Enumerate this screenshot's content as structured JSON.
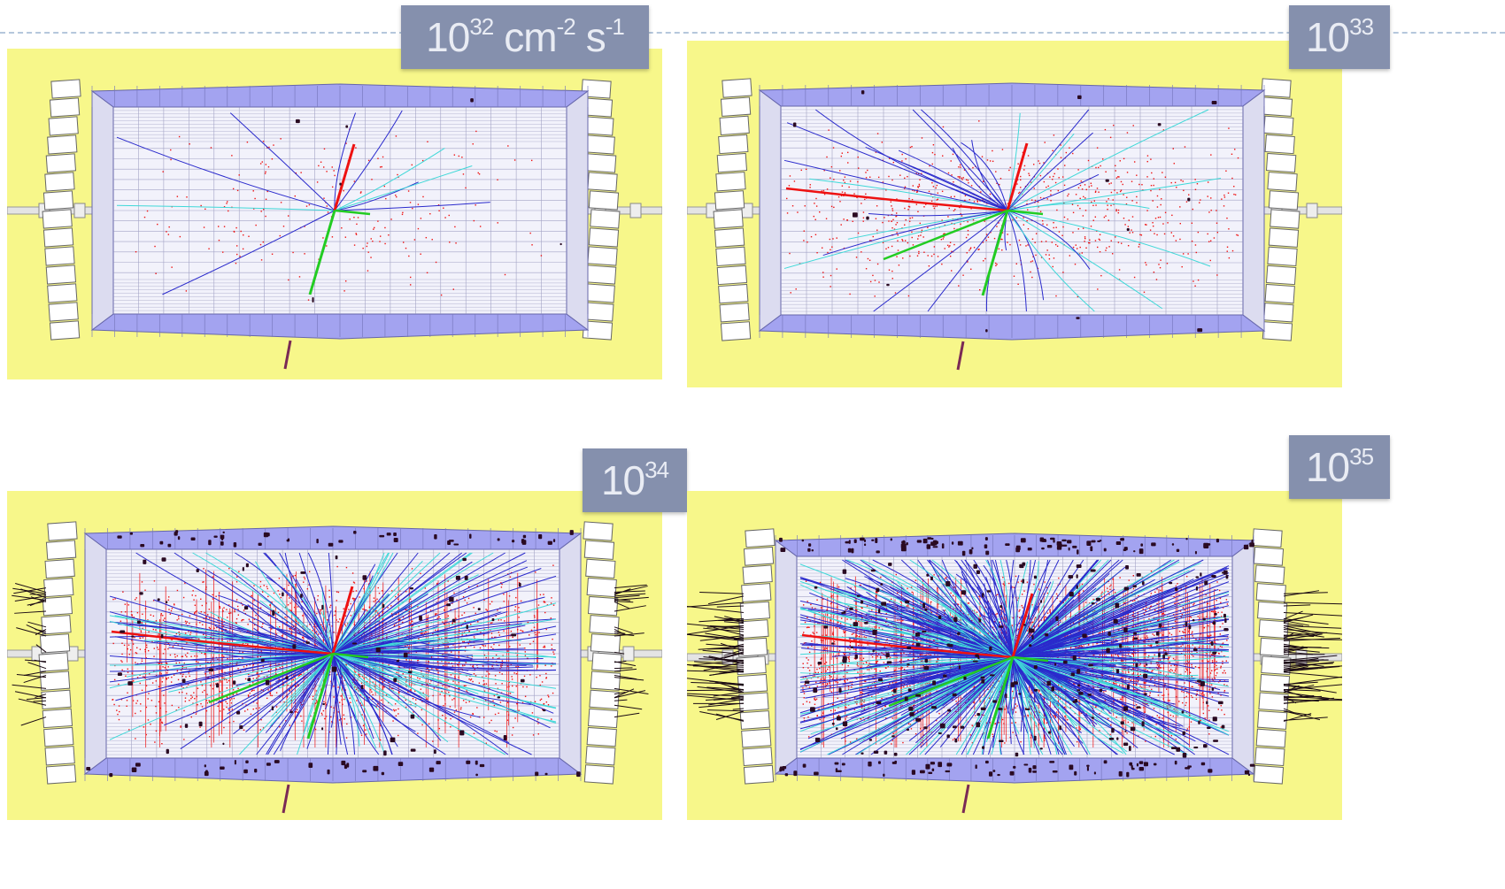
{
  "panels": [
    {
      "label": {
        "base": "10",
        "exp": "32",
        "unit1": "cm",
        "unit1_exp": "-2",
        "unit2": "s",
        "unit2_exp": "-1"
      },
      "tracks": 10,
      "hits": 220,
      "clusters": 6
    },
    {
      "label": {
        "base": "10",
        "exp": "33"
      },
      "tracks": 34,
      "hits": 900,
      "clusters": 14
    },
    {
      "label": {
        "base": "10",
        "exp": "34"
      },
      "tracks": 240,
      "hits": 2600,
      "clusters": 150
    },
    {
      "label": {
        "base": "10",
        "exp": "35"
      },
      "tracks": 520,
      "hits": 4200,
      "clusters": 380
    }
  ],
  "colors": {
    "background_yellow": "#f7f78a",
    "detector_purple": "#a3a3f0",
    "grid_line": "#8f8fb8",
    "track_blue": "#2a2acc",
    "track_cyan": "#3fd8d8",
    "track_green": "#22cc22",
    "track_red": "#ee1111",
    "label_box": "#8590ad"
  }
}
